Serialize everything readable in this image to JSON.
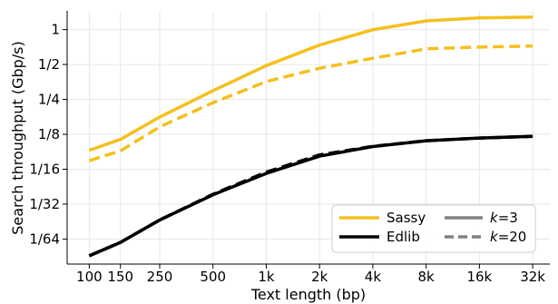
{
  "chart_data": {
    "type": "line",
    "xlabel": "Text length (bp)",
    "ylabel": "Search throughput (Gbp/s)",
    "x_scale": "log",
    "y_scale": "log2",
    "grid": true,
    "legend_position": "bottom-right",
    "x_ticks": [
      {
        "value": 100,
        "label": "100"
      },
      {
        "value": 150,
        "label": "150"
      },
      {
        "value": 250,
        "label": "250"
      },
      {
        "value": 500,
        "label": "500"
      },
      {
        "value": 1000,
        "label": "1k"
      },
      {
        "value": 2000,
        "label": "2k"
      },
      {
        "value": 4000,
        "label": "4k"
      },
      {
        "value": 8000,
        "label": "8k"
      },
      {
        "value": 16000,
        "label": "16k"
      },
      {
        "value": 32000,
        "label": "32k"
      }
    ],
    "y_ticks": [
      {
        "value": 1,
        "label": "1"
      },
      {
        "value": 0.5,
        "label": "1/2"
      },
      {
        "value": 0.25,
        "label": "1/4"
      },
      {
        "value": 0.125,
        "label": "1/8"
      },
      {
        "value": 0.0625,
        "label": "1/16"
      },
      {
        "value": 0.03125,
        "label": "1/32"
      },
      {
        "value": 0.015625,
        "label": "1/64"
      }
    ],
    "xlim": [
      75,
      40000
    ],
    "ylim": [
      0.0095,
      1.45
    ],
    "x": [
      100,
      150,
      250,
      500,
      1000,
      2000,
      4000,
      8000,
      16000,
      32000
    ],
    "series": [
      {
        "tool": "Sassy",
        "k": "k=3",
        "color": "#f4c01e",
        "dash": "solid",
        "values": [
          0.091,
          0.113,
          0.176,
          0.297,
          0.489,
          0.736,
          0.997,
          1.19,
          1.26,
          1.28
        ]
      },
      {
        "tool": "Sassy",
        "k": "k=20",
        "color": "#f4c01e",
        "dash": "dashed",
        "values": [
          0.074,
          0.09,
          0.145,
          0.234,
          0.356,
          0.464,
          0.566,
          0.682,
          0.707,
          0.722
        ]
      },
      {
        "tool": "Edlib",
        "k": "k=3",
        "color": "#000000",
        "dash": "solid",
        "values": [
          0.0112,
          0.0146,
          0.0228,
          0.0376,
          0.0575,
          0.081,
          0.098,
          0.11,
          0.116,
          0.12
        ]
      },
      {
        "tool": "Edlib",
        "k": "k=20",
        "color": "#000000",
        "dash": "dashed",
        "values": [
          0.0112,
          0.0146,
          0.0228,
          0.038,
          0.059,
          0.083,
          0.0985,
          0.11,
          0.116,
          0.12
        ]
      }
    ],
    "legend": {
      "tools": [
        {
          "label": "Sassy",
          "color": "#f4c01e"
        },
        {
          "label": "Edlib",
          "color": "#000000"
        }
      ],
      "k_values": [
        {
          "label": "=3",
          "dash": "solid",
          "color": "#808080"
        },
        {
          "label": "=20",
          "dash": "dashed",
          "color": "#808080"
        }
      ],
      "k_symbol": "k"
    }
  }
}
